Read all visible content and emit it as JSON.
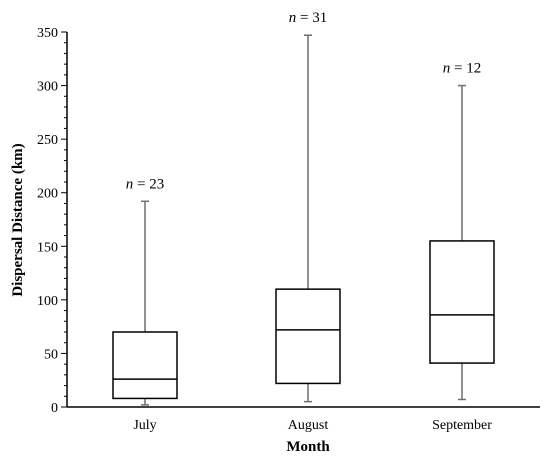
{
  "chart_data": {
    "type": "boxplot",
    "title": "",
    "xlabel": "Month",
    "ylabel": "Dispersal Distance (km)",
    "ylim": [
      0,
      350
    ],
    "yticks": [
      0,
      50,
      100,
      150,
      200,
      250,
      300,
      350
    ],
    "grid": false,
    "categories": [
      "July",
      "August",
      "September"
    ],
    "boxes": [
      {
        "category": "July",
        "n_label": "n = 23",
        "whisker_low": 2,
        "q1": 8,
        "median": 26,
        "q3": 70,
        "whisker_high": 192
      },
      {
        "category": "August",
        "n_label": "n = 31",
        "whisker_low": 5,
        "q1": 22,
        "median": 72,
        "q3": 110,
        "whisker_high": 347
      },
      {
        "category": "September",
        "n_label": "n = 12",
        "whisker_low": 7,
        "q1": 41,
        "median": 86,
        "q3": 155,
        "whisker_high": 300
      }
    ]
  }
}
